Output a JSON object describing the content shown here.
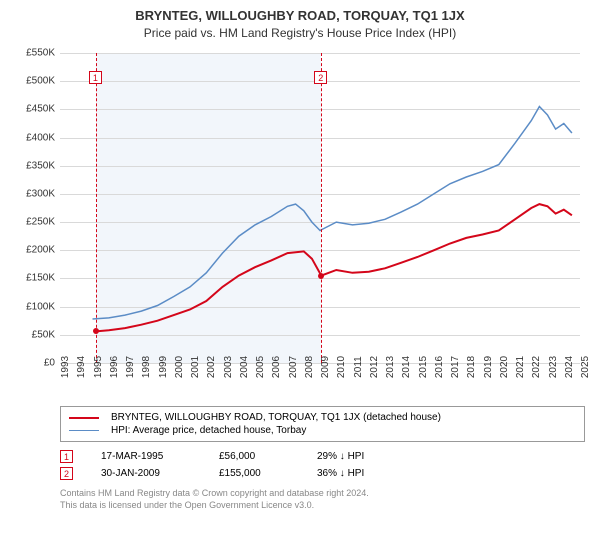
{
  "title": "BRYNTEG, WILLOUGHBY ROAD, TORQUAY, TQ1 1JX",
  "subtitle": "Price paid vs. HM Land Registry's House Price Index (HPI)",
  "chart": {
    "type": "line",
    "background_color": "#ffffff",
    "shade_color": "#f2f6fb",
    "grid_color": "#d9d9d9",
    "ylim": [
      0,
      550000
    ],
    "ytick_step": 50000,
    "y_labels": [
      "£0",
      "£50K",
      "£100K",
      "£150K",
      "£200K",
      "£250K",
      "£300K",
      "£350K",
      "£400K",
      "£450K",
      "£500K",
      "£550K"
    ],
    "x_years": [
      1993,
      1994,
      1995,
      1996,
      1997,
      1998,
      1999,
      2000,
      2001,
      2002,
      2003,
      2004,
      2005,
      2006,
      2007,
      2008,
      2009,
      2010,
      2011,
      2012,
      2013,
      2014,
      2015,
      2016,
      2017,
      2018,
      2019,
      2020,
      2021,
      2022,
      2023,
      2024,
      2025
    ],
    "shaded_range": [
      1995.21,
      2009.08
    ],
    "series": [
      {
        "name": "property",
        "label": "BRYNTEG, WILLOUGHBY ROAD, TORQUAY, TQ1 1JX (detached house)",
        "color": "#d4061a",
        "line_width": 2,
        "data": [
          [
            1995.21,
            56000
          ],
          [
            1996,
            58000
          ],
          [
            1997,
            62000
          ],
          [
            1998,
            68000
          ],
          [
            1999,
            75000
          ],
          [
            2000,
            85000
          ],
          [
            2001,
            95000
          ],
          [
            2002,
            110000
          ],
          [
            2003,
            135000
          ],
          [
            2004,
            155000
          ],
          [
            2005,
            170000
          ],
          [
            2006,
            182000
          ],
          [
            2007,
            195000
          ],
          [
            2008,
            198000
          ],
          [
            2008.5,
            185000
          ],
          [
            2009.08,
            155000
          ],
          [
            2010,
            165000
          ],
          [
            2011,
            160000
          ],
          [
            2012,
            162000
          ],
          [
            2013,
            168000
          ],
          [
            2014,
            178000
          ],
          [
            2015,
            188000
          ],
          [
            2016,
            200000
          ],
          [
            2017,
            212000
          ],
          [
            2018,
            222000
          ],
          [
            2019,
            228000
          ],
          [
            2020,
            235000
          ],
          [
            2021,
            255000
          ],
          [
            2022,
            275000
          ],
          [
            2022.5,
            282000
          ],
          [
            2023,
            278000
          ],
          [
            2023.5,
            265000
          ],
          [
            2024,
            272000
          ],
          [
            2024.5,
            262000
          ]
        ]
      },
      {
        "name": "hpi",
        "label": "HPI: Average price, detached house, Torbay",
        "color": "#5b8cc6",
        "line_width": 1.5,
        "data": [
          [
            1995,
            78000
          ],
          [
            1996,
            80000
          ],
          [
            1997,
            85000
          ],
          [
            1998,
            92000
          ],
          [
            1999,
            102000
          ],
          [
            2000,
            118000
          ],
          [
            2001,
            135000
          ],
          [
            2002,
            160000
          ],
          [
            2003,
            195000
          ],
          [
            2004,
            225000
          ],
          [
            2005,
            245000
          ],
          [
            2006,
            260000
          ],
          [
            2007,
            278000
          ],
          [
            2007.5,
            282000
          ],
          [
            2008,
            270000
          ],
          [
            2008.5,
            250000
          ],
          [
            2009,
            235000
          ],
          [
            2010,
            250000
          ],
          [
            2011,
            245000
          ],
          [
            2012,
            248000
          ],
          [
            2013,
            255000
          ],
          [
            2014,
            268000
          ],
          [
            2015,
            282000
          ],
          [
            2016,
            300000
          ],
          [
            2017,
            318000
          ],
          [
            2018,
            330000
          ],
          [
            2019,
            340000
          ],
          [
            2020,
            352000
          ],
          [
            2021,
            390000
          ],
          [
            2022,
            430000
          ],
          [
            2022.5,
            455000
          ],
          [
            2023,
            440000
          ],
          [
            2023.5,
            415000
          ],
          [
            2024,
            425000
          ],
          [
            2024.5,
            408000
          ]
        ]
      }
    ],
    "sale_markers": [
      {
        "n": "1",
        "year": 1995.21,
        "price": 56000,
        "color": "#d4061a"
      },
      {
        "n": "2",
        "year": 2009.08,
        "price": 155000,
        "color": "#d4061a"
      }
    ]
  },
  "legend": {
    "rows": [
      {
        "color": "#d4061a",
        "width": 2,
        "label": "BRYNTEG, WILLOUGHBY ROAD, TORQUAY, TQ1 1JX (detached house)"
      },
      {
        "color": "#5b8cc6",
        "width": 1.5,
        "label": "HPI: Average price, detached house, Torbay"
      }
    ]
  },
  "sales": [
    {
      "n": "1",
      "color": "#d4061a",
      "date": "17-MAR-1995",
      "price": "£56,000",
      "delta": "29% ↓ HPI"
    },
    {
      "n": "2",
      "color": "#d4061a",
      "date": "30-JAN-2009",
      "price": "£155,000",
      "delta": "36% ↓ HPI"
    }
  ],
  "footer": {
    "line1": "Contains HM Land Registry data © Crown copyright and database right 2024.",
    "line2": "This data is licensed under the Open Government Licence v3.0."
  }
}
